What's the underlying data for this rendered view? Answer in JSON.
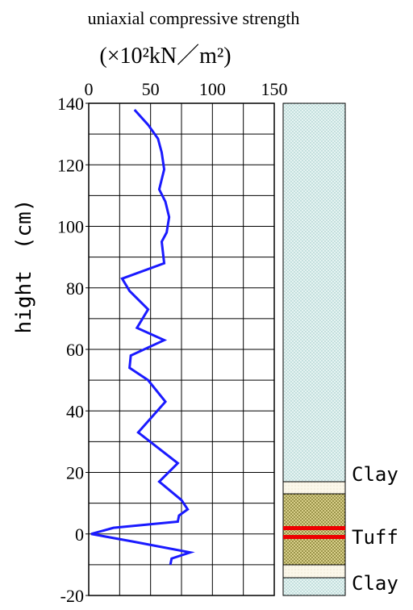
{
  "chart_data": {
    "type": "line",
    "title": "uniaxial compressive strength",
    "subtitle": "(×10²kN／m²)",
    "y_label": "hight　(cm)",
    "xlim": [
      0,
      150
    ],
    "xticks": [
      0,
      50,
      100,
      150
    ],
    "xgrid": [
      0,
      25,
      50,
      75,
      100,
      125,
      150
    ],
    "ylim": [
      -20,
      140
    ],
    "yticks": [
      -20,
      0,
      20,
      40,
      60,
      80,
      100,
      120,
      140
    ],
    "ygrid": [
      -20,
      -10,
      0,
      10,
      20,
      30,
      40,
      50,
      60,
      70,
      80,
      90,
      100,
      110,
      120,
      130,
      140
    ],
    "grid": true,
    "series": [
      {
        "color": "#1a1aff",
        "x": [
          37,
          48,
          56,
          59,
          61,
          57,
          62,
          65,
          63,
          59,
          61,
          27,
          33,
          48,
          39,
          61,
          34,
          33,
          48,
          62,
          40,
          72,
          57,
          75,
          80,
          73,
          72,
          20,
          2,
          36,
          82,
          67,
          66
        ],
        "values": [
          137.9,
          133,
          128.5,
          124,
          118.5,
          112,
          108,
          103,
          98,
          95,
          88,
          83,
          79,
          73,
          67,
          63,
          58,
          54,
          50,
          43,
          33,
          23,
          17,
          11,
          8,
          6,
          4,
          2,
          0,
          -2.5,
          -6,
          -8,
          -10
        ]
      }
    ],
    "column_labels": [
      "Clay",
      "Tuff",
      "Clay"
    ]
  }
}
